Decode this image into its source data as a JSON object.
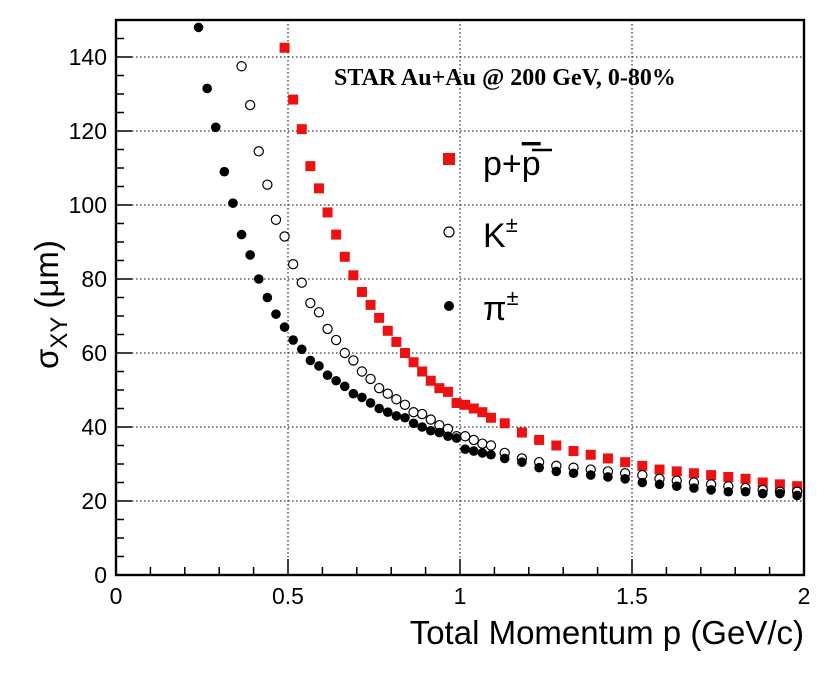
{
  "chart_data": {
    "type": "scatter",
    "title": "",
    "annotation": "STAR Au+Au @ 200 GeV, 0-80%",
    "xlabel": "Total Momentum p (GeV/c)",
    "ylabel": {
      "base": "σ",
      "sub": "XY",
      "unit": "(μm)"
    },
    "xlim": [
      0,
      2
    ],
    "ylim": [
      0,
      150
    ],
    "xticks": [
      0,
      0.5,
      1,
      1.5,
      2
    ],
    "xtick_labels": [
      "0",
      "0.5",
      "1",
      "1.5",
      "2"
    ],
    "yticks": [
      0,
      20,
      40,
      60,
      80,
      100,
      120,
      140
    ],
    "ytick_labels": [
      "0",
      "20",
      "40",
      "60",
      "80",
      "100",
      "120",
      "140"
    ],
    "grid": true,
    "series": [
      {
        "name": "proton",
        "legend": {
          "base": "p+",
          "bar": "p"
        },
        "marker": "filled-square",
        "color": "#ee1111",
        "x": [
          0.49,
          0.515,
          0.54,
          0.565,
          0.59,
          0.615,
          0.64,
          0.665,
          0.69,
          0.715,
          0.74,
          0.765,
          0.79,
          0.815,
          0.84,
          0.865,
          0.89,
          0.915,
          0.94,
          0.965,
          0.99,
          1.015,
          1.04,
          1.065,
          1.09,
          1.13,
          1.18,
          1.23,
          1.28,
          1.33,
          1.38,
          1.43,
          1.48,
          1.53,
          1.58,
          1.63,
          1.68,
          1.73,
          1.78,
          1.83,
          1.88,
          1.93,
          1.98
        ],
        "y": [
          142.5,
          128.5,
          120.5,
          110.5,
          104.5,
          98,
          92,
          86,
          81,
          76.5,
          73,
          69.5,
          66,
          63,
          60,
          57.5,
          55,
          52.5,
          50.5,
          49.5,
          46.5,
          46,
          45,
          44,
          42.5,
          41,
          38.5,
          36.5,
          35,
          33.5,
          32.5,
          31.5,
          30.5,
          29.5,
          28.5,
          28,
          27.5,
          27,
          26.5,
          26,
          25,
          24.5,
          24
        ]
      },
      {
        "name": "kaon",
        "legend": {
          "base": "K",
          "sup": "±"
        },
        "marker": "open-circle",
        "color": "#000000",
        "x": [
          0.365,
          0.39,
          0.415,
          0.44,
          0.465,
          0.49,
          0.515,
          0.54,
          0.565,
          0.59,
          0.615,
          0.64,
          0.665,
          0.69,
          0.715,
          0.74,
          0.765,
          0.79,
          0.815,
          0.84,
          0.865,
          0.89,
          0.915,
          0.94,
          0.965,
          0.99,
          1.015,
          1.04,
          1.065,
          1.09,
          1.13,
          1.18,
          1.23,
          1.28,
          1.33,
          1.38,
          1.43,
          1.48,
          1.53,
          1.58,
          1.63,
          1.68,
          1.73,
          1.78,
          1.83,
          1.88,
          1.93,
          1.98
        ],
        "y": [
          137.5,
          127,
          114.5,
          105.5,
          96,
          91.5,
          84,
          79,
          73.5,
          71,
          66.5,
          63.5,
          60,
          58,
          55,
          53,
          50.5,
          49,
          47.5,
          46,
          44,
          43.5,
          42,
          40.5,
          39.5,
          37.5,
          37.5,
          36.5,
          35.5,
          35,
          33,
          31.5,
          30.5,
          29.5,
          29,
          28.5,
          28,
          27.5,
          27,
          26,
          25.5,
          25,
          24.5,
          24,
          23.5,
          23,
          22.5,
          22.5
        ]
      },
      {
        "name": "pion",
        "legend": {
          "base": "π",
          "sup": "±"
        },
        "marker": "filled-circle",
        "color": "#000000",
        "x": [
          0.24,
          0.265,
          0.29,
          0.315,
          0.34,
          0.365,
          0.39,
          0.415,
          0.44,
          0.465,
          0.49,
          0.515,
          0.54,
          0.565,
          0.59,
          0.615,
          0.64,
          0.665,
          0.69,
          0.715,
          0.74,
          0.765,
          0.79,
          0.815,
          0.84,
          0.865,
          0.89,
          0.915,
          0.94,
          0.965,
          0.99,
          1.015,
          1.04,
          1.065,
          1.09,
          1.13,
          1.18,
          1.23,
          1.28,
          1.33,
          1.38,
          1.43,
          1.48,
          1.53,
          1.58,
          1.63,
          1.68,
          1.73,
          1.78,
          1.83,
          1.88,
          1.93,
          1.98
        ],
        "y": [
          148,
          131.5,
          121,
          109,
          100.5,
          92,
          86.5,
          80,
          75,
          70.5,
          67,
          63.5,
          61,
          58,
          56.5,
          54,
          52.5,
          51,
          49,
          48,
          46.5,
          45,
          44,
          43,
          42.5,
          41,
          40,
          39,
          38.5,
          37.5,
          37,
          34,
          33.5,
          33,
          32.5,
          31.5,
          30.5,
          29,
          28,
          27.5,
          27,
          26.5,
          26,
          25,
          24.5,
          24,
          23.5,
          23,
          22.5,
          22.5,
          22,
          22,
          21.5
        ]
      }
    ]
  }
}
